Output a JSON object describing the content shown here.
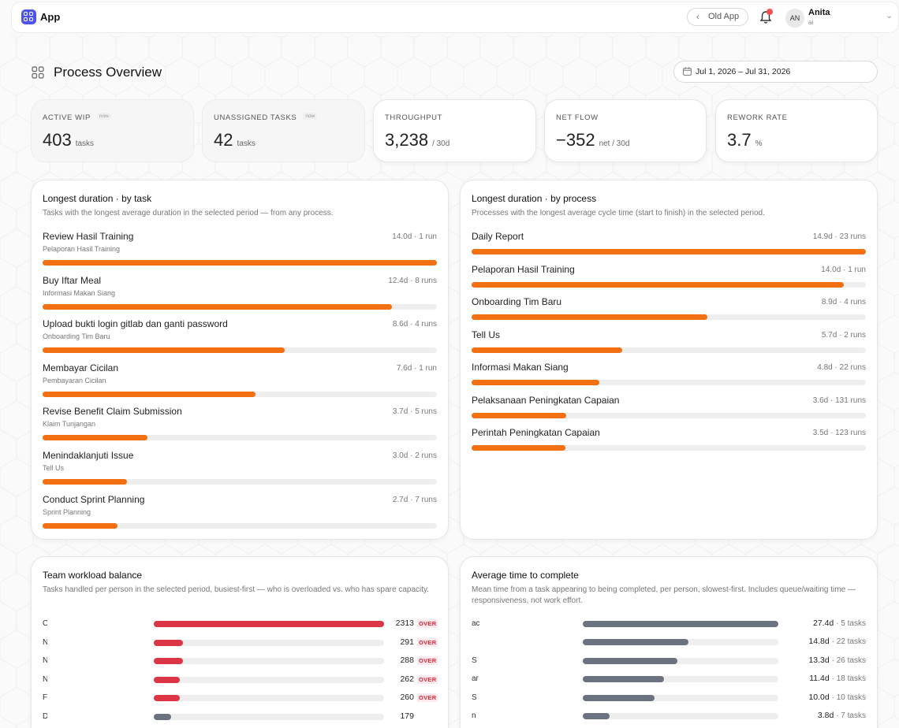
{
  "topbar": {
    "app_name": "App",
    "old_app_label": "Old App",
    "user": {
      "initials": "AN",
      "name": "Anita",
      "sub": "ai"
    }
  },
  "page": {
    "title": "Process Overview",
    "date_range": "Jul 1, 2026 – Jul 31, 2026"
  },
  "kpis": [
    {
      "label": "ACTIVE WIP",
      "badge": "now",
      "value": "403",
      "unit": "tasks"
    },
    {
      "label": "UNASSIGNED TASKS",
      "badge": "now",
      "value": "42",
      "unit": "tasks"
    },
    {
      "label": "THROUGHPUT",
      "badge": "",
      "value": "3,238",
      "unit": "/ 30d"
    },
    {
      "label": "NET FLOW",
      "badge": "",
      "value": "−352",
      "unit": "net / 30d"
    },
    {
      "label": "REWORK RATE",
      "badge": "",
      "value": "3.7",
      "unit": "%"
    }
  ],
  "longest_by_task": {
    "title": "Longest duration · by task",
    "description": "Tasks with the longest average duration in the selected period — from any process.",
    "rows": [
      {
        "name": "Review Hasil Training",
        "process": "Pelaporan Hasil Training",
        "meta": "14.0d · 1 run",
        "fraction": 1.0
      },
      {
        "name": "Buy Iftar Meal",
        "process": "Informasi Makan Siang",
        "meta": "12.4d · 8 runs",
        "fraction": 0.885
      },
      {
        "name": "Upload bukti login gitlab dan ganti password",
        "process": "Onboarding Tim Baru",
        "meta": "8.6d · 4 runs",
        "fraction": 0.614
      },
      {
        "name": "Membayar Cicilan",
        "process": "Pembayaran Cicilan",
        "meta": "7.6d · 1 run",
        "fraction": 0.539
      },
      {
        "name": "Revise Benefit Claim Submission",
        "process": "Klaim Tunjangan",
        "meta": "3.7d · 5 runs",
        "fraction": 0.265
      },
      {
        "name": "Menindaklanjuti Issue",
        "process": "Tell Us",
        "meta": "3.0d · 2 runs",
        "fraction": 0.213
      },
      {
        "name": "Conduct Sprint Planning",
        "process": "Sprint Planning",
        "meta": "2.7d · 7 runs",
        "fraction": 0.19
      }
    ]
  },
  "longest_by_process": {
    "title": "Longest duration · by process",
    "description": "Processes with the longest average cycle time (start to finish) in the selected period.",
    "rows": [
      {
        "name": "Daily Report",
        "meta": "14.9d · 23 runs",
        "fraction": 1.0
      },
      {
        "name": "Pelaporan Hasil Training",
        "meta": "14.0d · 1 run",
        "fraction": 0.944
      },
      {
        "name": "Onboarding Tim Baru",
        "meta": "8.9d · 4 runs",
        "fraction": 0.598
      },
      {
        "name": "Tell Us",
        "meta": "5.7d · 2 runs",
        "fraction": 0.382
      },
      {
        "name": "Informasi Makan Siang",
        "meta": "4.8d · 22 runs",
        "fraction": 0.324
      },
      {
        "name": "Pelaksanaan Peningkatan Capaian",
        "meta": "3.6d · 131 runs",
        "fraction": 0.24
      },
      {
        "name": "Perintah Peningkatan Capaian",
        "meta": "3.5d · 123 runs",
        "fraction": 0.238
      }
    ]
  },
  "team_workload": {
    "title": "Team workload balance",
    "description": "Tasks handled per person in the selected period, busiest-first — who is overloaded vs. who has spare capacity.",
    "over_label": "OVER",
    "rows": [
      {
        "name": "C",
        "count": "2313",
        "fraction": 1.0,
        "over": true,
        "color": "#dc3545"
      },
      {
        "name": "N",
        "count": "291",
        "fraction": 0.126,
        "over": true,
        "color": "#dc3545"
      },
      {
        "name": "N",
        "count": "288",
        "fraction": 0.125,
        "over": true,
        "color": "#dc3545"
      },
      {
        "name": "N",
        "count": "262",
        "fraction": 0.113,
        "over": true,
        "color": "#dc3545"
      },
      {
        "name": "F",
        "count": "260",
        "fraction": 0.112,
        "over": true,
        "color": "#dc3545"
      },
      {
        "name": "D",
        "count": "179",
        "fraction": 0.077,
        "over": false,
        "color": "#6b7280"
      }
    ]
  },
  "avg_time": {
    "title": "Average time to complete",
    "description": "Mean time from a task appearing to being completed, per person, slowest-first. Includes queue/waiting time — responsiveness, not work effort.",
    "rows": [
      {
        "name": "ac",
        "value": "27.4d",
        "tasks": "· 5 tasks",
        "fraction": 1.0
      },
      {
        "name": "",
        "value": "14.8d",
        "tasks": "· 22 tasks",
        "fraction": 0.54
      },
      {
        "name": "S",
        "value": "13.3d",
        "tasks": "· 26 tasks",
        "fraction": 0.485
      },
      {
        "name": "ar",
        "value": "11.4d",
        "tasks": "· 18 tasks",
        "fraction": 0.416
      },
      {
        "name": "S",
        "value": "10.0d",
        "tasks": "· 10 tasks",
        "fraction": 0.365
      },
      {
        "name": "n",
        "value": "3.8d",
        "tasks": "· 7 tasks",
        "fraction": 0.139
      }
    ]
  },
  "colors": {
    "accent": "#4f54e8",
    "bar_orange": "#f26f12",
    "bar_red": "#dc3545",
    "bar_gray": "#6b7280",
    "notification": "#f05252"
  }
}
